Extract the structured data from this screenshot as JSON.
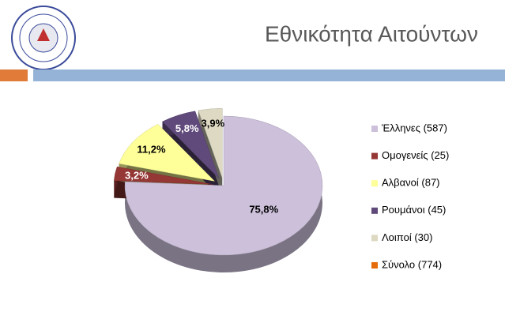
{
  "chart_data": {
    "type": "pie3d",
    "title": "Εθνικότητα Αιτούντων",
    "categories": [
      "Έλληνες (587)",
      "Ομογενείς (25)",
      "Αλβανοί (87)",
      "Ρουμάνοι (45)",
      "Λοιποί (30)",
      "Σύνολο (774)"
    ],
    "values": [
      75.8,
      3.2,
      11.2,
      5.8,
      3.9,
      null
    ],
    "value_labels": [
      "75,8%",
      "3,2%",
      "11,2%",
      "5,8%",
      "3,9%",
      null
    ],
    "colors": [
      "#ccc0da",
      "#953735",
      "#ffff99",
      "#604a7b",
      "#ddd9c3",
      "#e46c0a"
    ],
    "legend": "right"
  }
}
